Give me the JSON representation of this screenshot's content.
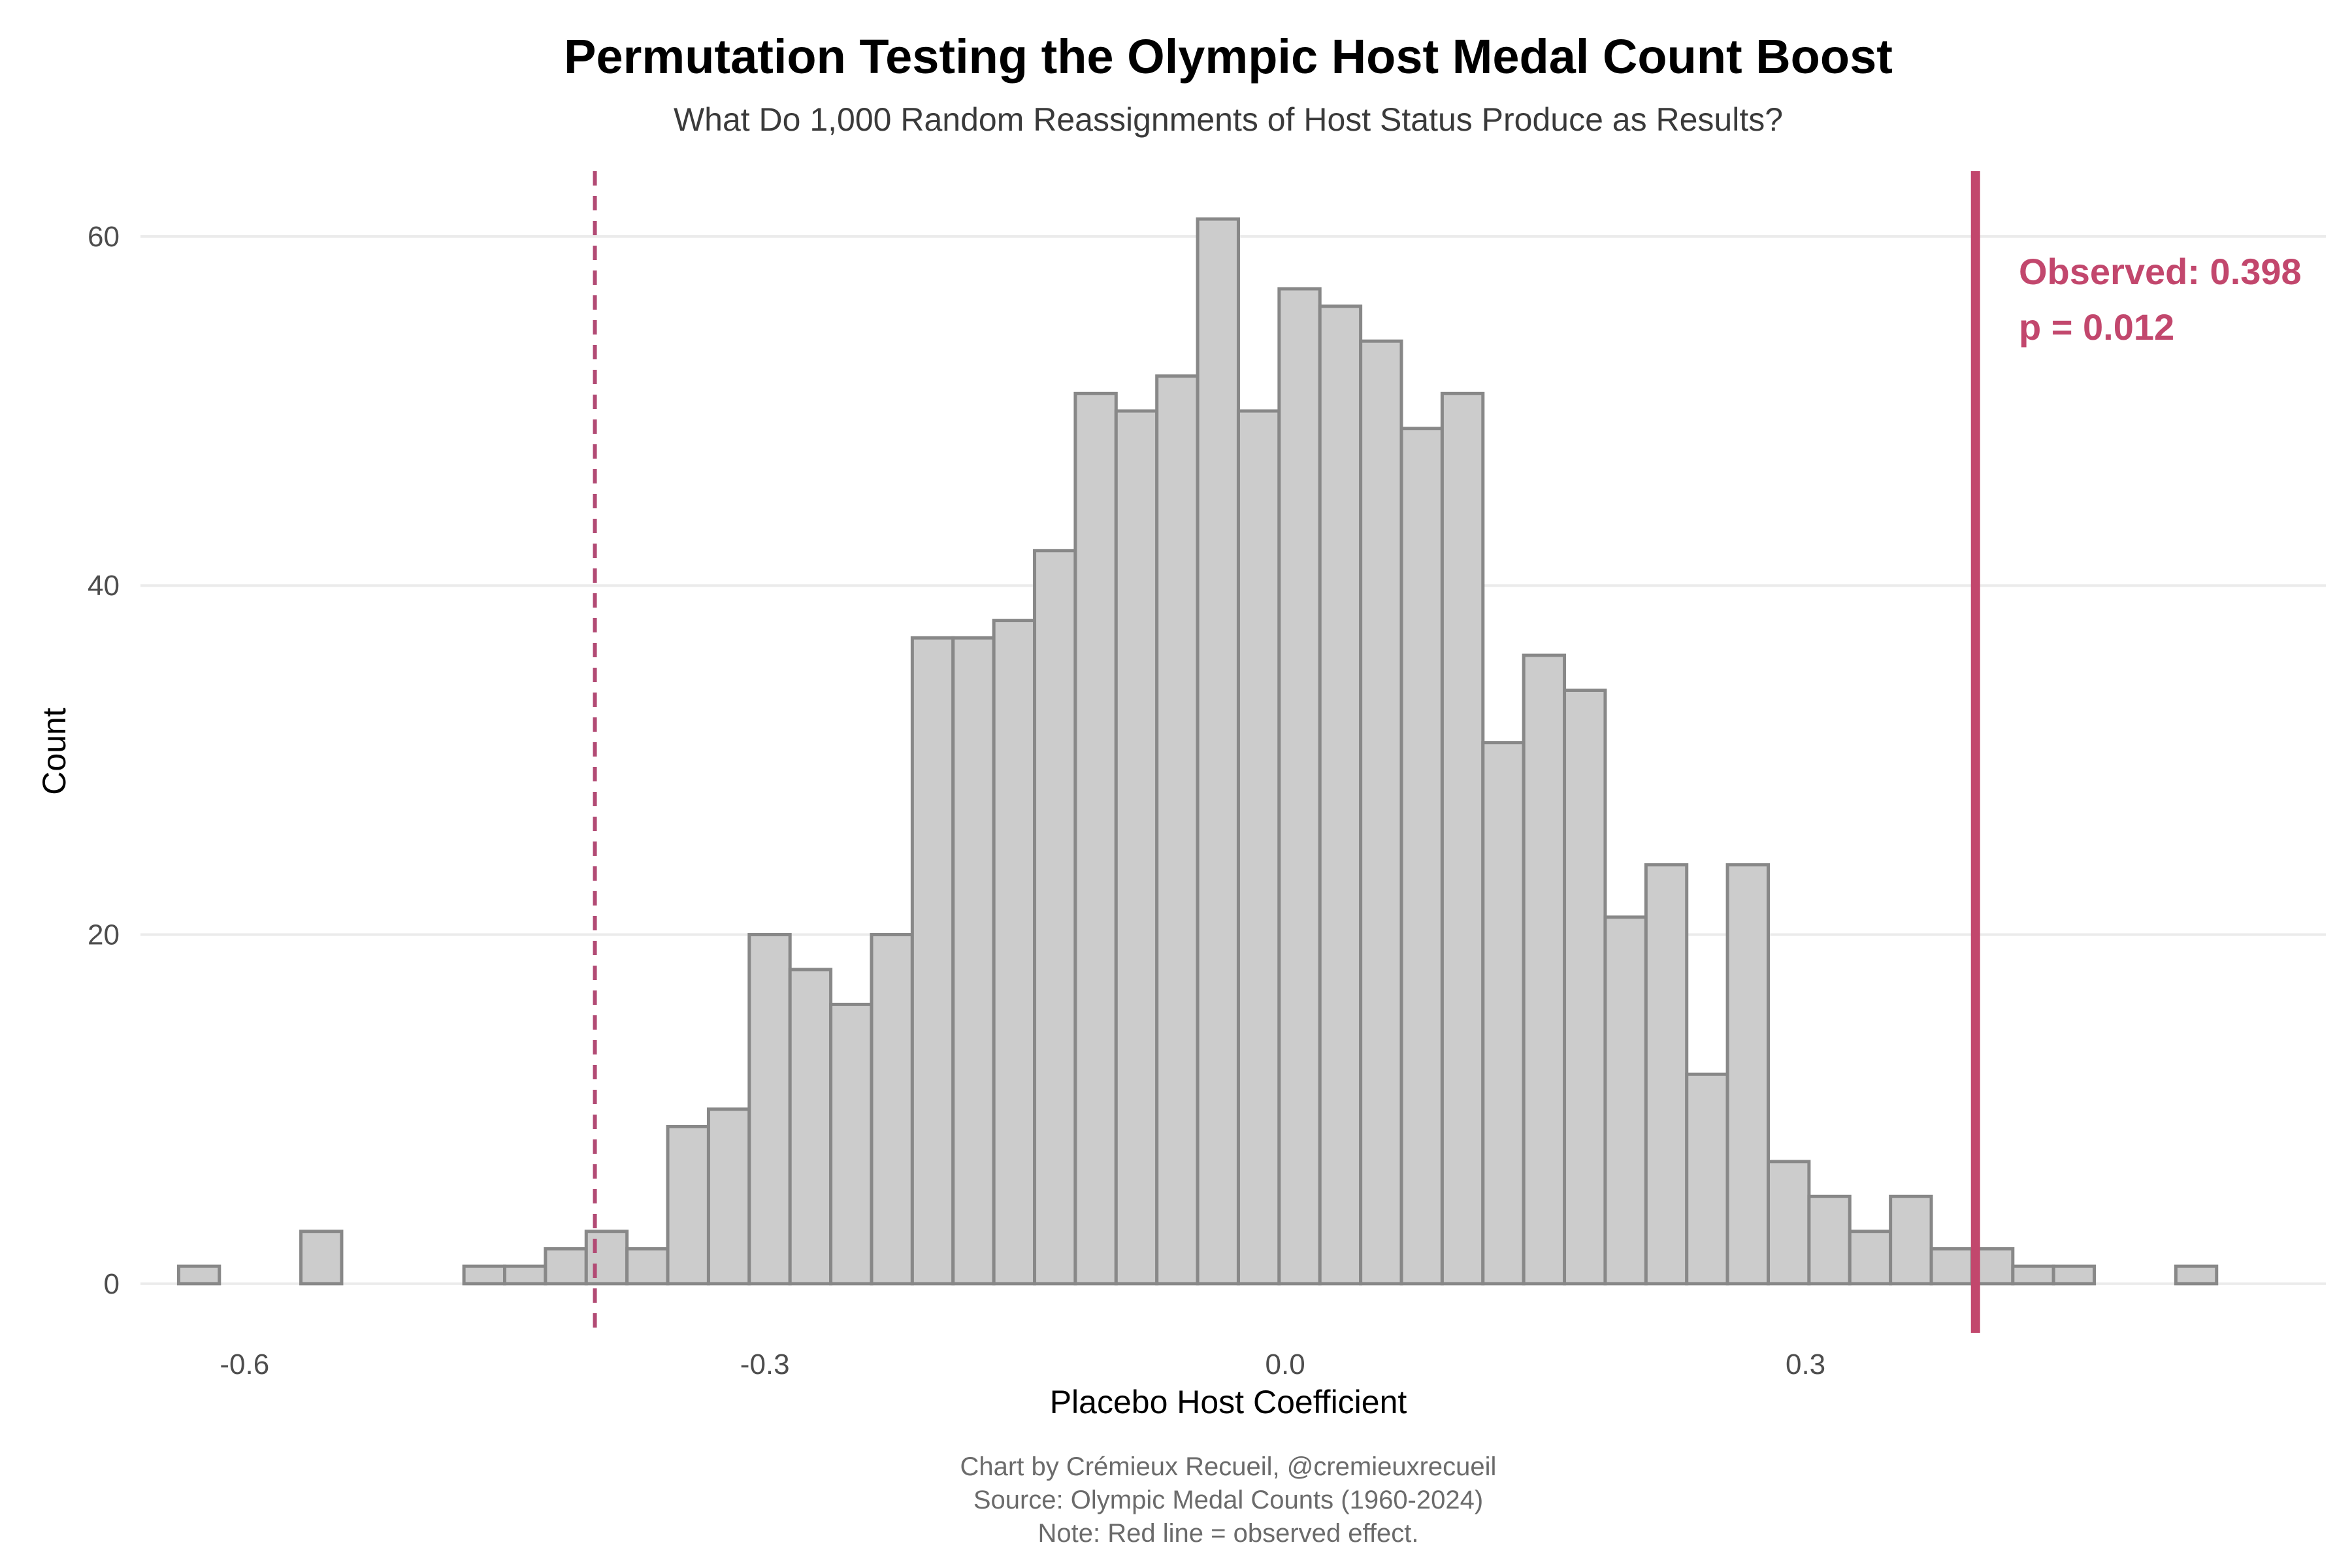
{
  "chart_data": {
    "type": "bar",
    "title": "Permutation Testing the Olympic Host Medal Count Boost",
    "subtitle": "What Do 1,000 Random Reassignments of Host Status Produce as Results?",
    "xlabel": "Placebo Host Coefficient",
    "ylabel": "Count",
    "xlim": [
      -0.66,
      0.6
    ],
    "ylim": [
      -3,
      64
    ],
    "xticks": [
      {
        "value": -0.6,
        "label": "-0.6"
      },
      {
        "value": -0.3,
        "label": "-0.3"
      },
      {
        "value": 0.0,
        "label": "0.0"
      },
      {
        "value": 0.3,
        "label": "0.3"
      }
    ],
    "yticks": [
      {
        "value": 0,
        "label": "0"
      },
      {
        "value": 20,
        "label": "20"
      },
      {
        "value": 40,
        "label": "40"
      },
      {
        "value": 60,
        "label": "60"
      }
    ],
    "grid": true,
    "bin_start": -0.638,
    "bin_width": 0.0235,
    "counts": [
      1,
      0,
      0,
      3,
      0,
      0,
      0,
      1,
      1,
      2,
      3,
      2,
      9,
      10,
      20,
      18,
      16,
      20,
      37,
      37,
      38,
      42,
      51,
      50,
      52,
      61,
      50,
      57,
      56,
      54,
      49,
      51,
      31,
      36,
      34,
      21,
      24,
      12,
      24,
      7,
      5,
      3,
      5,
      2,
      2,
      1,
      1,
      0,
      0,
      1
    ],
    "observed": {
      "value": 0.398,
      "label": "Observed: 0.398",
      "p_label": "p = 0.012",
      "color": "#c2476d"
    },
    "negative_reference": {
      "value": -0.398,
      "style": "dashed",
      "color": "#b24a74"
    },
    "bar_fill": "#cccccc",
    "bar_outline": "#888888"
  },
  "caption": {
    "line1": "Chart by Crémieux Recueil, @cremieuxrecueil",
    "line2": "Source: Olympic Medal Counts (1960-2024)",
    "line3": "Note: Red line = observed effect."
  }
}
